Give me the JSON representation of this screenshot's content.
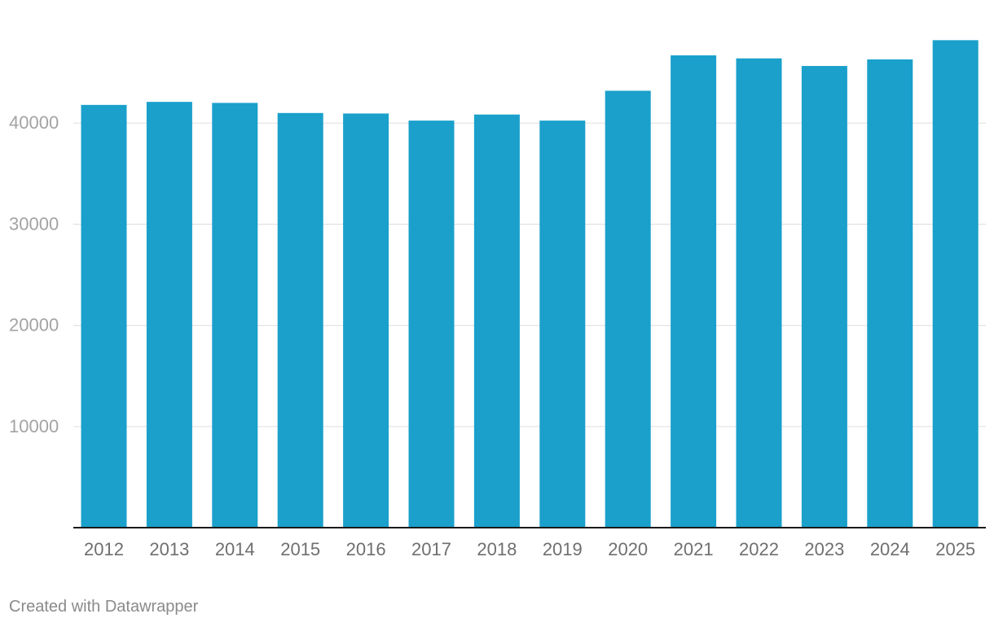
{
  "chart_data": {
    "type": "bar",
    "categories": [
      "2012",
      "2013",
      "2014",
      "2015",
      "2016",
      "2017",
      "2018",
      "2019",
      "2020",
      "2021",
      "2022",
      "2023",
      "2024",
      "2025"
    ],
    "values": [
      41800,
      42100,
      42000,
      41000,
      40950,
      40250,
      40850,
      40250,
      43200,
      46700,
      46400,
      45650,
      46300,
      48200
    ],
    "yticks": [
      "10000",
      "20000",
      "30000",
      "40000"
    ],
    "ylim": [
      0,
      48200
    ],
    "grid": true,
    "bar_color": "#1aa0cb",
    "title": "",
    "xlabel": "",
    "ylabel": ""
  },
  "footer": {
    "credit": "Created with Datawrapper"
  }
}
